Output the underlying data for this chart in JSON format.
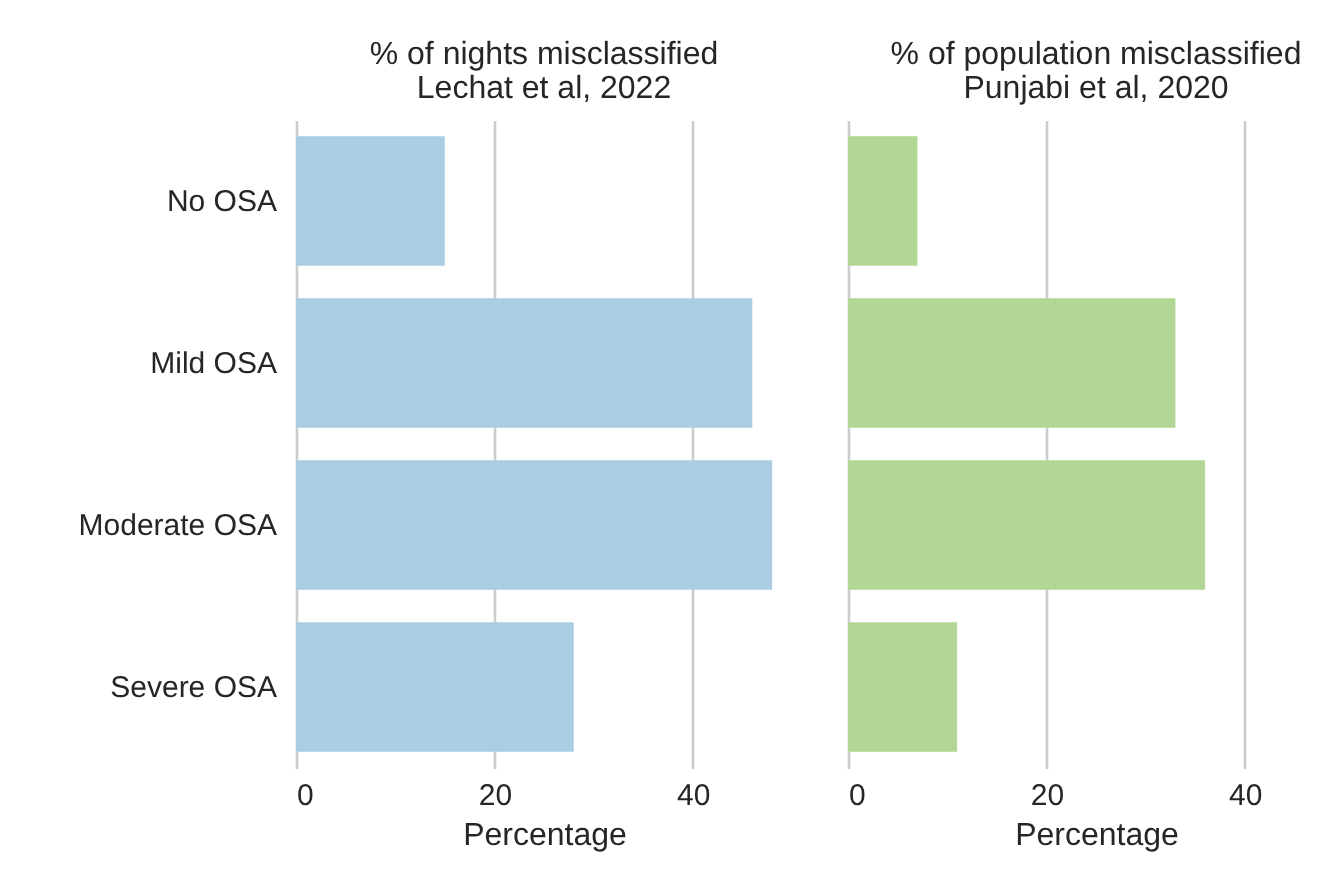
{
  "chart_data": [
    {
      "type": "bar",
      "orientation": "horizontal",
      "title": "% of nights misclassified",
      "subtitle": "Lechat et al, 2022",
      "xlabel": "Percentage",
      "categories": [
        "No OSA",
        "Mild OSA",
        "Moderate OSA",
        "Severe OSA"
      ],
      "values": [
        15,
        46,
        48,
        28
      ],
      "color": "#abcde1",
      "xlim": [
        0,
        50
      ],
      "xticks": [
        0,
        20,
        40
      ],
      "grid": "x"
    },
    {
      "type": "bar",
      "orientation": "horizontal",
      "title": "% of population misclassified",
      "subtitle": "Punjabi et al, 2020",
      "xlabel": "Percentage",
      "categories": [
        null,
        null,
        null,
        null
      ],
      "values": [
        7,
        33,
        36,
        11
      ],
      "color": "#b2d693",
      "xlim": [
        0,
        50
      ],
      "xticks": [
        0,
        20,
        40
      ],
      "grid": "x",
      "tick_labels": "x"
    }
  ]
}
